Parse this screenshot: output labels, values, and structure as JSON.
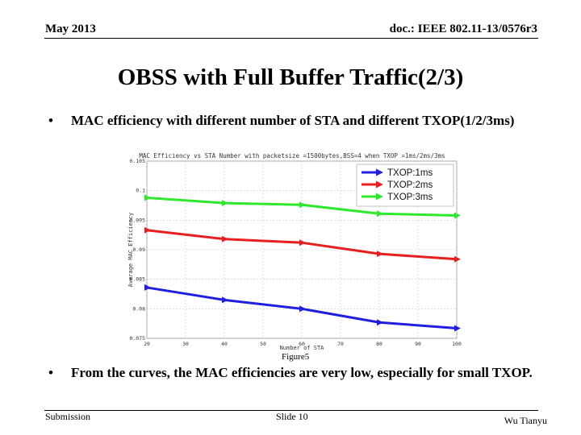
{
  "header": {
    "date": "May 2013",
    "doc_id": "doc.: IEEE 802.11-13/0576r3"
  },
  "title": "OBSS with Full Buffer Traffic(2/3)",
  "bullets": [
    {
      "symbol": "•",
      "text": "MAC efficiency with different number of STA and different TXOP(1/2/3ms)"
    },
    {
      "symbol": "•",
      "text": "From the curves, the MAC efficiencies are very low,  especially for small TXOP."
    }
  ],
  "figure_caption": "Figure5",
  "footer": {
    "left": "Submission",
    "center": "Slide 10",
    "right": "Wu Tianyu"
  },
  "chart_data": {
    "type": "line",
    "title": "MAC Efficiency vs STA Number with packetsize =1500bytes,BSS=4 when TXOP =1ms/2ms/3ms",
    "xlabel": "Number of STA",
    "ylabel": "Average MAC Efficiency",
    "xlim": [
      20,
      100
    ],
    "ylim": [
      0.075,
      0.105
    ],
    "x_ticks": [
      20,
      30,
      40,
      50,
      60,
      70,
      80,
      90,
      100
    ],
    "x_tick_labels": [
      "20",
      "30",
      "40",
      "50",
      "60",
      "70",
      "80",
      "90",
      "100"
    ],
    "y_ticks": [
      0.075,
      0.08,
      0.085,
      0.09,
      0.095,
      0.1,
      0.105
    ],
    "y_tick_labels": [
      "0.075",
      "0.08",
      "0.085",
      "0.09",
      "0.095",
      "0.1",
      "0.105"
    ],
    "grid": true,
    "legend_position": "top-right",
    "series": [
      {
        "name": "TXOP:1ms",
        "color": "#1f1fe0",
        "x": [
          20,
          40,
          60,
          80,
          100
        ],
        "values": [
          0.0836,
          0.0815,
          0.08,
          0.0777,
          0.0767
        ]
      },
      {
        "name": "TXOP:2ms",
        "color": "#e81f1f",
        "x": [
          20,
          40,
          60,
          80,
          100
        ],
        "values": [
          0.0933,
          0.0918,
          0.0912,
          0.0893,
          0.0884
        ]
      },
      {
        "name": "TXOP:3ms",
        "color": "#2ee82e",
        "x": [
          20,
          40,
          60,
          80,
          100
        ],
        "values": [
          0.0988,
          0.0979,
          0.0976,
          0.0961,
          0.0958
        ]
      }
    ]
  }
}
